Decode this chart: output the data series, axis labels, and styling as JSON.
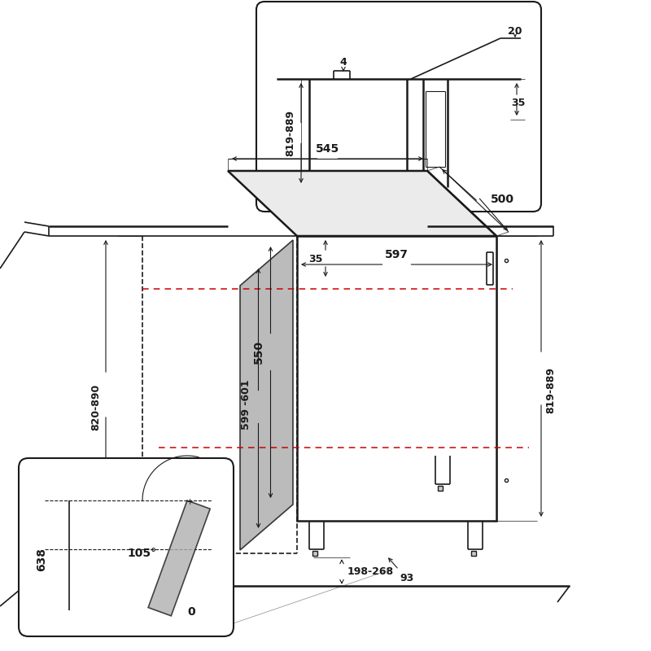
{
  "bg_color": "#ffffff",
  "line_color": "#1a1a1a",
  "gray_fill": "#b0b0b0",
  "red_dashed": "#cc0000",
  "annotations": {
    "dim_545": "545",
    "dim_597": "597",
    "dim_500": "500",
    "dim_550": "550",
    "dim_599_601": "599 -601",
    "dim_820_890": "820-890",
    "dim_819_889_main": "819-889",
    "dim_35_front": "35",
    "dim_198_268": "198-268",
    "dim_93": "93",
    "dim_4": "4",
    "dim_20": "20",
    "dim_819_889_inset": "819-889",
    "dim_35_inset": "35",
    "dim_105": "105°",
    "dim_638": "638",
    "dim_0": "0"
  }
}
